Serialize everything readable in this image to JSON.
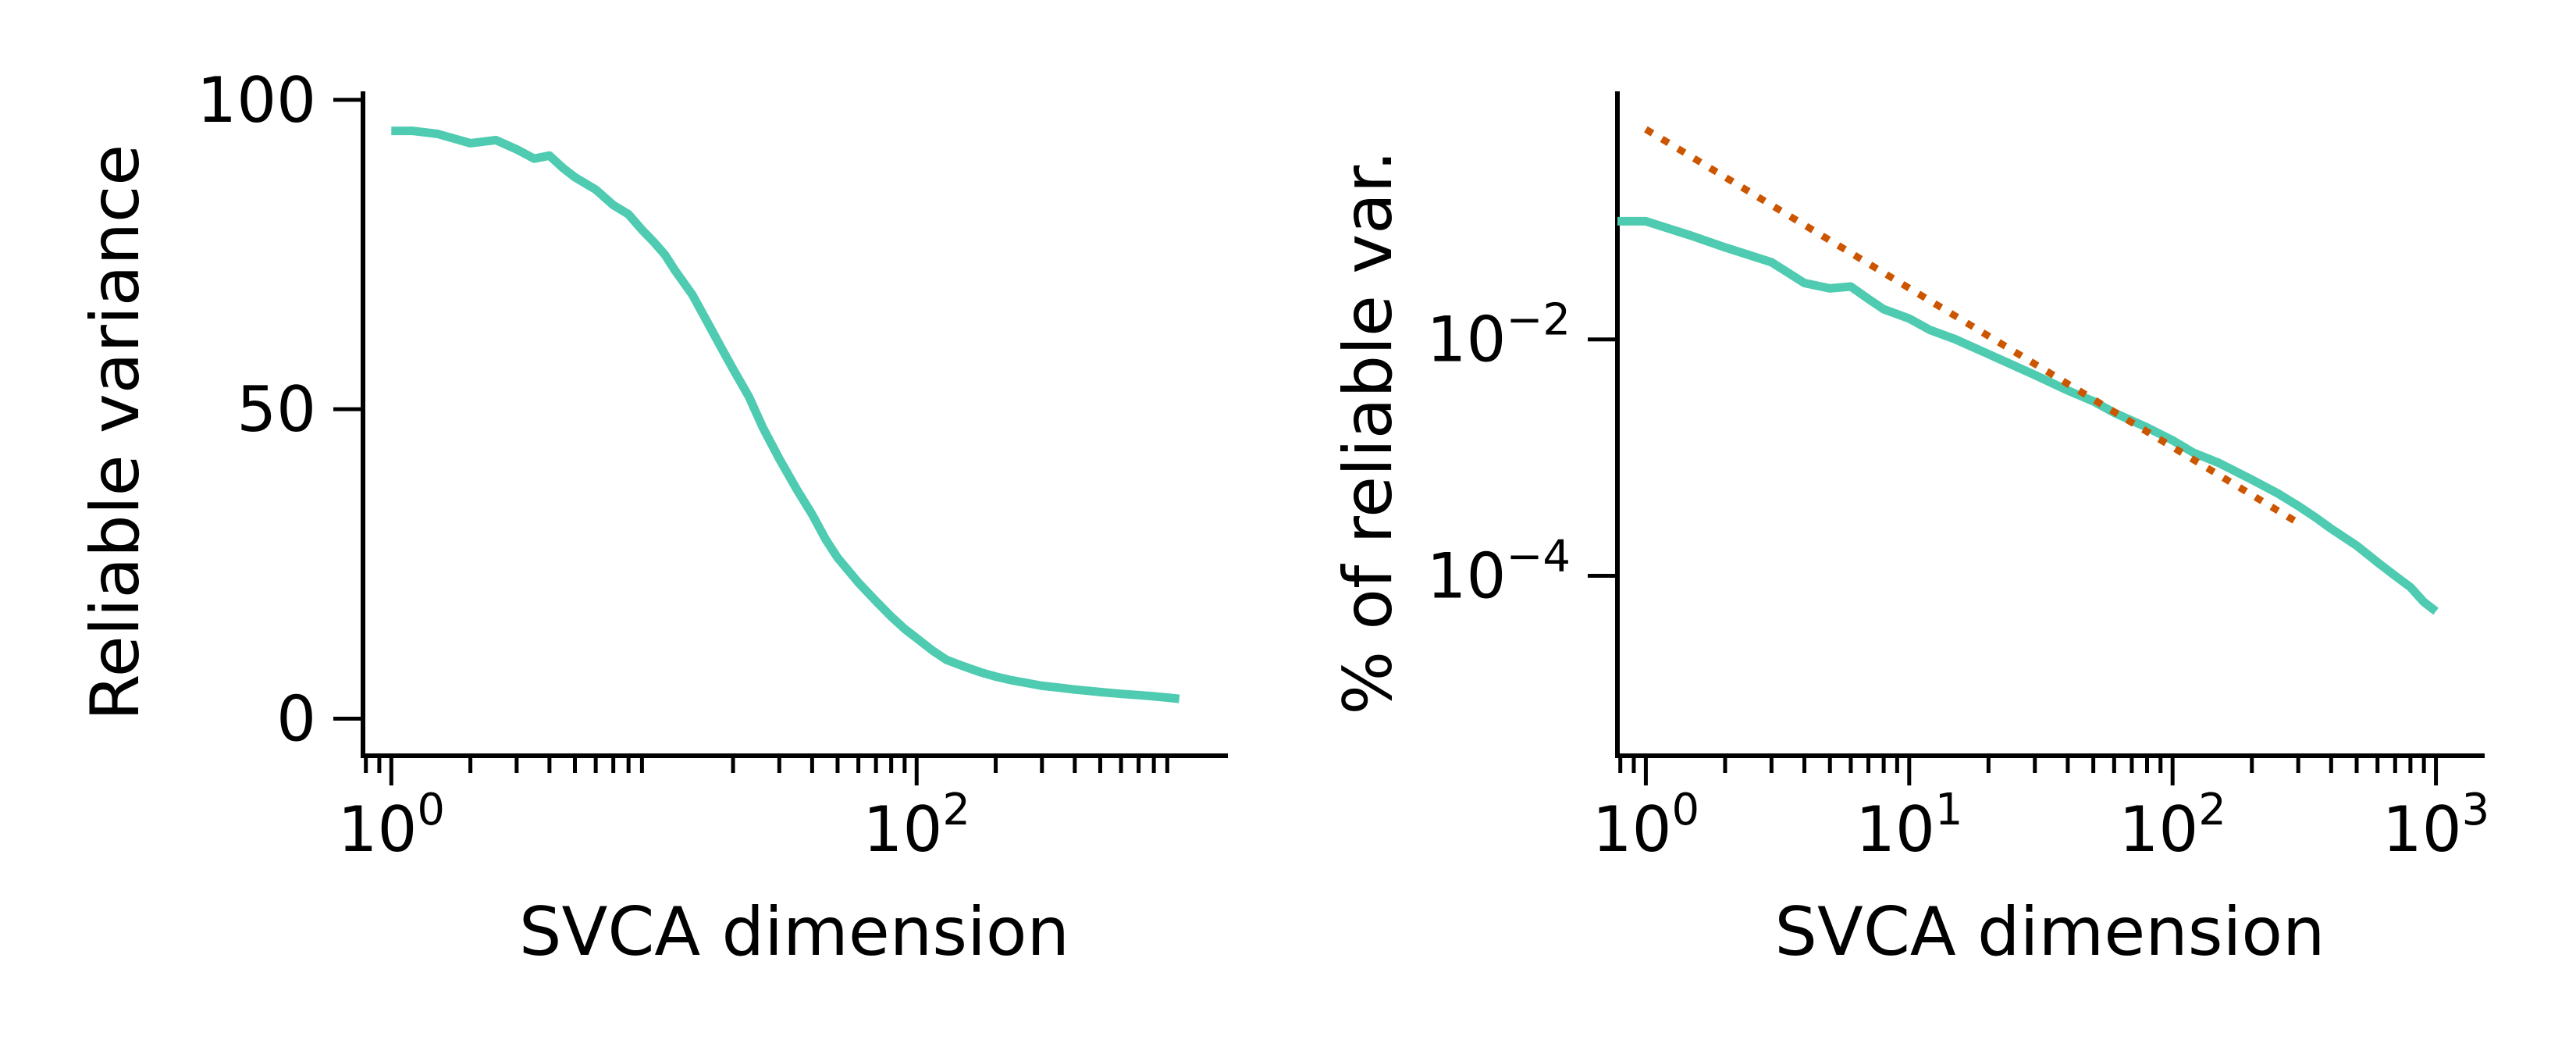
{
  "colors": {
    "data": "#4ecbb0",
    "fit": "#cc5500",
    "axis": "#000000"
  },
  "chart_data": [
    {
      "type": "line",
      "xscale": "log",
      "yscale": "linear",
      "xlabel": "SVCA dimension",
      "ylabel": "Reliable variance",
      "xlim": [
        0.78,
        1500
      ],
      "ylim": [
        -6,
        101
      ],
      "yticks": [
        {
          "value": 0,
          "label": "0"
        },
        {
          "value": 50,
          "label": "50"
        },
        {
          "value": 100,
          "label": "100"
        }
      ],
      "xticks": [
        {
          "value": 1,
          "base": "10",
          "exp": "0"
        },
        {
          "value": 100,
          "base": "10",
          "exp": "2"
        }
      ],
      "series": [
        {
          "color": "#4ecbb0",
          "x": [
            1,
            1.2,
            1.5,
            2,
            2.5,
            3,
            3.5,
            4,
            4.5,
            5,
            6,
            7,
            8,
            9,
            10,
            11,
            12,
            14,
            16,
            18,
            20,
            23,
            26,
            30,
            35,
            40,
            45,
            50,
            60,
            70,
            80,
            90,
            100,
            115,
            130,
            150,
            175,
            200,
            230,
            260,
            300,
            350,
            400,
            450,
            500,
            600,
            700,
            800,
            900,
            1000
          ],
          "y": [
            95,
            95,
            94.5,
            93,
            93.5,
            92,
            90.5,
            91,
            89,
            87.5,
            85.5,
            83,
            81.5,
            79,
            77,
            75,
            72.5,
            68.5,
            64,
            60,
            56.5,
            52,
            47,
            42,
            37,
            33,
            29,
            26,
            22,
            19,
            16.5,
            14.5,
            13,
            11,
            9.5,
            8.5,
            7.5,
            6.8,
            6.2,
            5.8,
            5.3,
            5,
            4.7,
            4.5,
            4.3,
            4,
            3.8,
            3.6,
            3.4,
            3.2
          ]
        }
      ]
    },
    {
      "type": "line",
      "xscale": "log",
      "yscale": "log",
      "xlabel": "SVCA dimension",
      "ylabel": "% of reliable var.",
      "xlim": [
        0.78,
        1500
      ],
      "ylim": [
        3e-06,
        1.2
      ],
      "yticks": [
        {
          "value": 0.01,
          "base": "10",
          "exp": "−2"
        },
        {
          "value": 0.0001,
          "base": "10",
          "exp": "−4"
        }
      ],
      "xticks": [
        {
          "value": 1,
          "base": "10",
          "exp": "0"
        },
        {
          "value": 10,
          "base": "10",
          "exp": "1"
        },
        {
          "value": 100,
          "base": "10",
          "exp": "2"
        },
        {
          "value": 1000,
          "base": "10",
          "exp": "3"
        }
      ],
      "series": [
        {
          "color": "#4ecbb0",
          "style": "solid",
          "x": [
            0.78,
            1,
            1.5,
            2,
            3,
            4,
            5,
            6,
            7,
            8,
            10,
            12,
            15,
            20,
            25,
            30,
            40,
            50,
            60,
            80,
            100,
            120,
            150,
            200,
            250,
            300,
            350,
            400,
            500,
            600,
            700,
            800,
            900,
            1000
          ],
          "y": [
            0.1,
            0.1,
            0.075,
            0.06,
            0.045,
            0.03,
            0.027,
            0.028,
            0.022,
            0.018,
            0.015,
            0.012,
            0.01,
            0.0075,
            0.006,
            0.005,
            0.0037,
            0.003,
            0.0024,
            0.0018,
            0.0014,
            0.0011,
            0.0009,
            0.00065,
            0.0005,
            0.00039,
            0.00031,
            0.00025,
            0.00018,
            0.00013,
            0.0001,
            8e-05,
            6e-05,
            5e-05
          ]
        },
        {
          "color": "#cc5500",
          "style": "dotted",
          "x": [
            1,
            300
          ],
          "y": [
            0.6,
            0.00028
          ]
        }
      ]
    }
  ]
}
